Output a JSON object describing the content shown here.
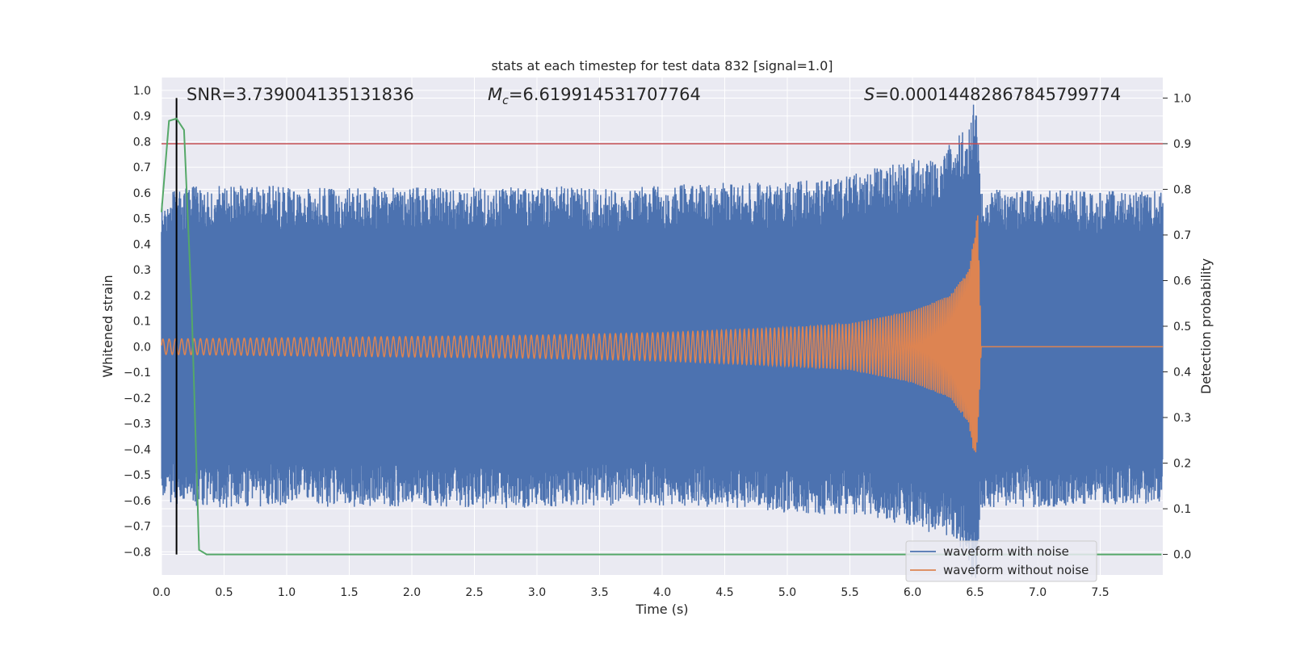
{
  "chart_data": {
    "type": "line",
    "title": "stats at each timestep for test data 832 [signal=1.0]",
    "xlabel": "Time (s)",
    "ylabel_left": "Whitened strain",
    "ylabel_right": "Detection probability",
    "xlim": [
      0.0,
      8.0
    ],
    "ylim_left": [
      -0.89,
      1.05
    ],
    "ylim_right": [
      -0.045,
      1.045
    ],
    "x_ticks": [
      "0.0",
      "0.5",
      "1.0",
      "1.5",
      "2.0",
      "2.5",
      "3.0",
      "3.5",
      "4.0",
      "4.5",
      "5.0",
      "5.5",
      "6.0",
      "6.5",
      "7.0",
      "7.5"
    ],
    "y_ticks_left": [
      "1.0",
      "0.9",
      "0.8",
      "0.7",
      "0.6",
      "0.5",
      "0.4",
      "0.3",
      "0.2",
      "0.1",
      "0.0",
      "−0.1",
      "−0.2",
      "−0.3",
      "−0.4",
      "−0.5",
      "−0.6",
      "−0.7",
      "−0.8"
    ],
    "y_ticks_right": [
      "1.0",
      "0.9",
      "0.8",
      "0.7",
      "0.6",
      "0.5",
      "0.4",
      "0.3",
      "0.2",
      "0.1",
      "0.0"
    ],
    "grid": true,
    "legend_position": "bottom-right",
    "annotations": {
      "snr": "SNR=3.739004135131836",
      "mc_symbol": "M",
      "mc_sub": "c",
      "mc_value": "=6.619914531707764",
      "s_symbol": "S",
      "s_value": "=0.00014482867845799774"
    },
    "series": [
      {
        "name": "waveform with noise",
        "color": "#4c72b0",
        "axis": "left",
        "envelope_x": [
          0.0,
          0.5,
          1.0,
          1.5,
          2.0,
          2.5,
          3.0,
          3.5,
          4.0,
          4.5,
          5.0,
          5.5,
          5.8,
          6.0,
          6.2,
          6.35,
          6.45,
          6.5,
          6.55,
          6.7,
          7.0,
          7.5,
          7.99
        ],
        "envelope_max": [
          0.62,
          0.63,
          0.63,
          0.62,
          0.63,
          0.62,
          0.63,
          0.62,
          0.63,
          0.64,
          0.64,
          0.67,
          0.71,
          0.74,
          0.72,
          0.83,
          0.86,
          1.0,
          0.6,
          0.62,
          0.61,
          0.61,
          0.61
        ],
        "envelope_min": [
          -0.61,
          -0.63,
          -0.62,
          -0.63,
          -0.62,
          -0.63,
          -0.63,
          -0.62,
          -0.62,
          -0.63,
          -0.65,
          -0.66,
          -0.68,
          -0.71,
          -0.73,
          -0.76,
          -0.86,
          -0.97,
          -0.64,
          -0.62,
          -0.63,
          -0.62,
          -0.61
        ]
      },
      {
        "name": "waveform without noise",
        "color": "#dd8452",
        "axis": "left",
        "envelope_x": [
          0.0,
          1.0,
          2.0,
          3.0,
          4.0,
          5.0,
          5.5,
          6.0,
          6.3,
          6.45,
          6.5,
          6.52,
          6.55,
          7.99
        ],
        "envelope_max": [
          0.03,
          0.035,
          0.04,
          0.045,
          0.055,
          0.075,
          0.09,
          0.14,
          0.2,
          0.3,
          0.45,
          0.56,
          0.0,
          0.0
        ],
        "envelope_min": [
          -0.03,
          -0.035,
          -0.04,
          -0.045,
          -0.055,
          -0.075,
          -0.09,
          -0.14,
          -0.2,
          -0.3,
          -0.45,
          -0.37,
          0.0,
          0.0
        ],
        "start_period_s": 0.05,
        "end_period_s": 0.01
      },
      {
        "color": "#55a868",
        "axis": "right",
        "x": [
          0.0,
          0.06,
          0.12,
          0.18,
          0.24,
          0.3,
          0.36,
          7.99
        ],
        "y": [
          0.75,
          0.95,
          0.955,
          0.93,
          0.55,
          0.01,
          0.0,
          0.0
        ]
      }
    ],
    "reference_lines": [
      {
        "orientation": "horizontal",
        "axis": "right",
        "value": 0.9,
        "color": "#c44e52"
      },
      {
        "orientation": "vertical",
        "value": 0.12,
        "color": "#000000",
        "y_range_right": [
          0.0,
          1.0
        ]
      }
    ]
  }
}
